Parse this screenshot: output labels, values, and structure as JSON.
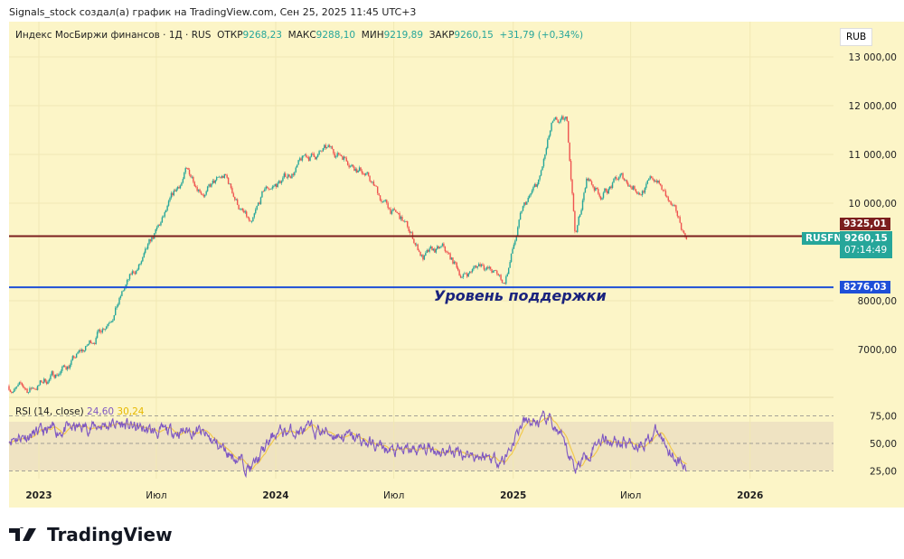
{
  "credit": "Signals_stock создал(а) график на TradingView.com, Сен 25, 2025 11:45 UTC+3",
  "legend": {
    "name": "Индекс МосБиржи финансов · 1Д · RUS",
    "open_label": "ОТКР",
    "open": "9268,23",
    "high_label": "МАКС",
    "high": "9288,10",
    "low_label": "МИН",
    "low": "9219,89",
    "close_label": "ЗАКР",
    "close": "9260,15",
    "change": "+31,79 (+0,34%)"
  },
  "currency": "RUB",
  "symbol": "RUSFN",
  "last_price": "9260,15",
  "countdown": "07:14:49",
  "resistance_label": "9325,01",
  "support_label": "8276,03",
  "support_text": "Уровень поддержки",
  "rsi": {
    "title": "RSI (14, close)",
    "value": "24,60",
    "ma_value": "30,24",
    "ticks": [
      "75,00",
      "50,00",
      "25,00"
    ]
  },
  "logo": "TradingView",
  "colors": {
    "bg": "#fcf5c7",
    "up": "#26a69a",
    "down": "#ef5350",
    "resistance": "#7b1e1e",
    "support": "#1e4fd8",
    "rsi": "#7e57c2",
    "rsi_ma": "#f2c94c"
  },
  "chart_data": [
    {
      "type": "candlestick",
      "ylim": [
        5500,
        13300
      ],
      "yticks": [
        "13 000,00",
        "12 000,00",
        "11 000,00",
        "10 000,00",
        "8000,00",
        "7000,00"
      ],
      "ytick_values": [
        13000,
        12000,
        11000,
        10000,
        8000,
        7000
      ],
      "xticks": [
        "2023",
        "Июл",
        "2024",
        "Июл",
        "2025",
        "Июл",
        "2026"
      ],
      "xtick_dates": [
        "2023-01-01",
        "2023-07-01",
        "2024-01-01",
        "2024-07-01",
        "2025-01-01",
        "2025-07-01",
        "2026-01-01"
      ],
      "hlines": [
        {
          "value": 9325.01,
          "color": "#7b1e1e"
        },
        {
          "value": 8276.03,
          "color": "#1e4fd8"
        }
      ],
      "approx_monthly_close": [
        [
          "2022-11-16",
          6250
        ],
        [
          "2022-12-15",
          6150
        ],
        [
          "2023-01-15",
          6400
        ],
        [
          "2023-02-15",
          6700
        ],
        [
          "2023-03-15",
          7000
        ],
        [
          "2023-04-15",
          7600
        ],
        [
          "2023-05-15",
          8300
        ],
        [
          "2023-06-15",
          8900
        ],
        [
          "2023-07-15",
          9700
        ],
        [
          "2023-08-15",
          10600
        ],
        [
          "2023-09-15",
          10300
        ],
        [
          "2023-10-15",
          10500
        ],
        [
          "2023-11-25",
          9450
        ],
        [
          "2023-12-15",
          10200
        ],
        [
          "2024-01-15",
          10500
        ],
        [
          "2024-02-15",
          10900
        ],
        [
          "2024-03-15",
          11050
        ],
        [
          "2024-04-15",
          11000
        ],
        [
          "2024-05-15",
          10700
        ],
        [
          "2024-06-15",
          10000
        ],
        [
          "2024-07-15",
          9600
        ],
        [
          "2024-08-15",
          8900
        ],
        [
          "2024-09-15",
          9000
        ],
        [
          "2024-10-15",
          8500
        ],
        [
          "2024-11-15",
          8800
        ],
        [
          "2024-12-18",
          8350
        ],
        [
          "2025-01-15",
          9800
        ],
        [
          "2025-02-10",
          10400
        ],
        [
          "2025-03-01",
          11500
        ],
        [
          "2025-03-25",
          11600
        ],
        [
          "2025-04-07",
          9350
        ],
        [
          "2025-04-25",
          10500
        ],
        [
          "2025-05-15",
          10200
        ],
        [
          "2025-06-15",
          10500
        ],
        [
          "2025-07-15",
          10300
        ],
        [
          "2025-08-10",
          10500
        ],
        [
          "2025-09-01",
          9900
        ],
        [
          "2025-09-25",
          9260
        ]
      ]
    },
    {
      "type": "line",
      "name": "RSI (14, close)",
      "ylim": [
        15,
        90
      ],
      "hlines": [
        75,
        50,
        25
      ],
      "approx_values": [
        [
          "2022-11-16",
          55
        ],
        [
          "2023-02-01",
          62
        ],
        [
          "2023-05-01",
          68
        ],
        [
          "2023-07-01",
          60
        ],
        [
          "2023-09-01",
          62
        ],
        [
          "2023-11-25",
          27
        ],
        [
          "2024-01-01",
          60
        ],
        [
          "2024-03-01",
          62
        ],
        [
          "2024-05-01",
          55
        ],
        [
          "2024-07-01",
          42
        ],
        [
          "2024-09-01",
          45
        ],
        [
          "2024-11-01",
          40
        ],
        [
          "2024-12-18",
          35
        ],
        [
          "2025-01-15",
          68
        ],
        [
          "2025-03-01",
          70
        ],
        [
          "2025-04-07",
          28
        ],
        [
          "2025-05-15",
          55
        ],
        [
          "2025-07-15",
          50
        ],
        [
          "2025-08-10",
          60
        ],
        [
          "2025-09-25",
          24.6
        ]
      ]
    }
  ]
}
